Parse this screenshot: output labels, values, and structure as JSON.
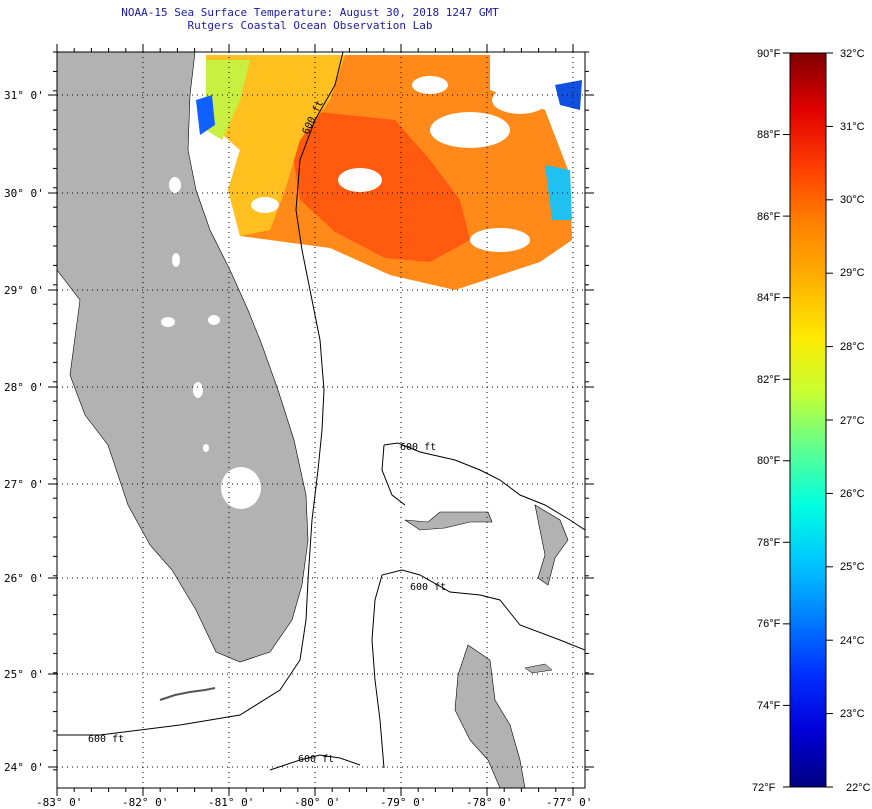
{
  "title": {
    "line1": "NOAA-15 Sea Surface Temperature:  August 30, 2018 1247 GMT",
    "line2": "Rutgers Coastal Ocean Observation Lab"
  },
  "map": {
    "lat_labels": [
      "31° 0'",
      "30° 0'",
      "29° 0'",
      "28° 0'",
      "27° 0'",
      "26° 0'",
      "25° 0'",
      "24° 0'"
    ],
    "lon_labels": [
      "-83° 0'",
      "-82° 0'",
      "-81° 0'",
      "-80° 0'",
      "-79° 0'",
      "-78° 0'",
      "-77° 0'"
    ],
    "contour_labels": [
      "600 ft",
      "600 ft",
      "600 ft",
      "600 ft",
      "600 ft"
    ],
    "colors": {
      "land": "#b2b2b2",
      "frame": "#000000",
      "grid": "#000000",
      "cloud": "#ffffff"
    }
  },
  "colorbar": {
    "fahrenheit_labels": [
      "90°F",
      "88°F",
      "86°F",
      "84°F",
      "82°F",
      "80°F",
      "78°F",
      "76°F",
      "74°F",
      "72°F"
    ],
    "celsius_labels": [
      "32°C",
      "31°C",
      "30°C",
      "29°C",
      "28°C",
      "27°C",
      "26°C",
      "25°C",
      "24°C",
      "23°C",
      "22°C"
    ],
    "gradient_stops": [
      "#800000",
      "#e00000",
      "#ff3c00",
      "#ff8000",
      "#ffb000",
      "#ffe800",
      "#c8ff30",
      "#60ff90",
      "#00ffe0",
      "#00c8ff",
      "#0080ff",
      "#0030ff",
      "#0000d8",
      "#000080"
    ]
  }
}
